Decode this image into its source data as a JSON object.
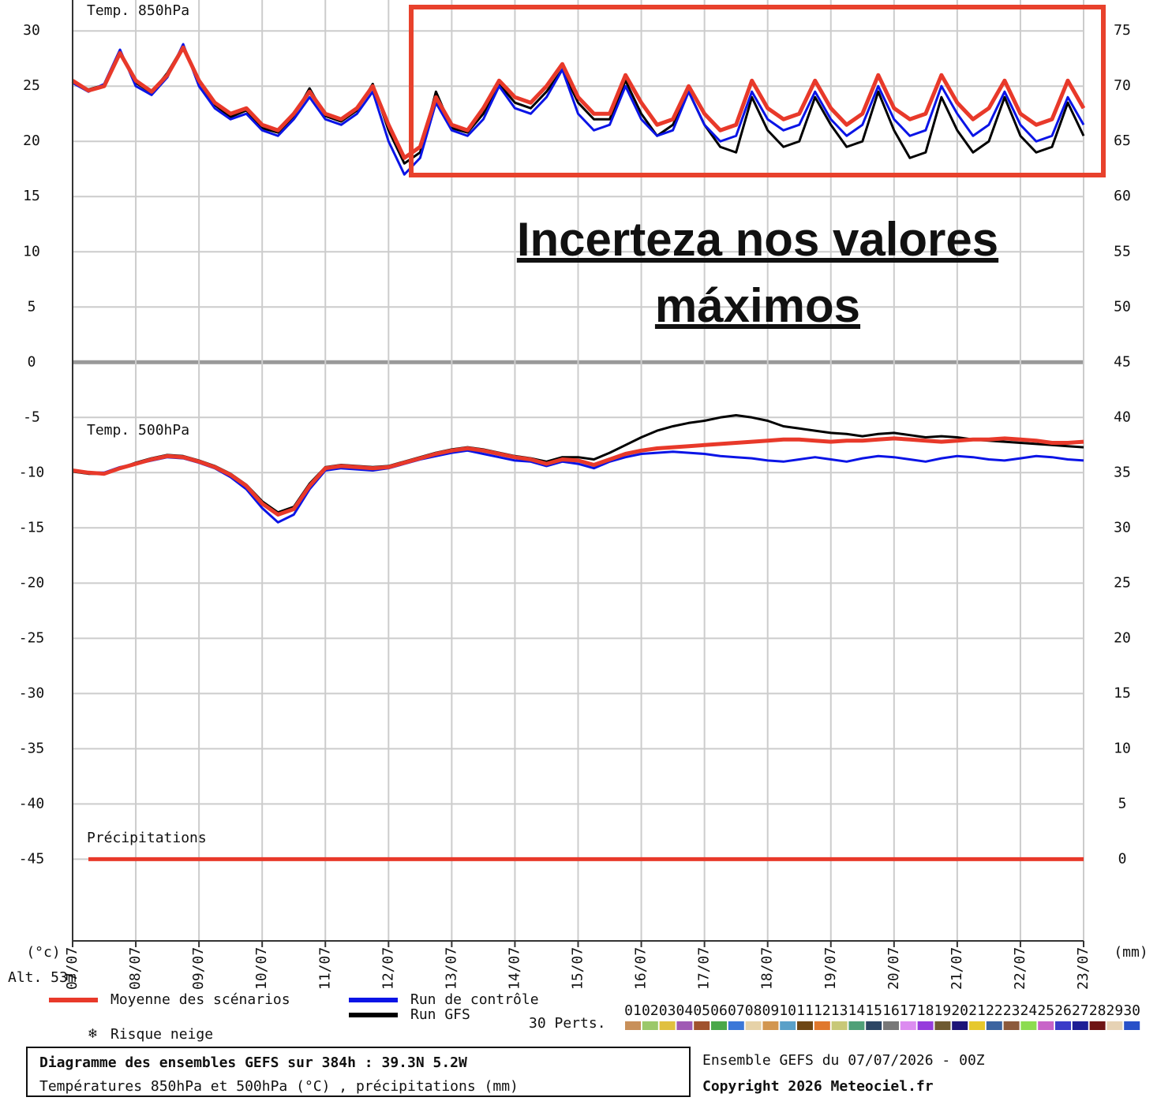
{
  "chart_data": {
    "type": "line",
    "title": "Diagramme des ensembles GEFS sur 384h : 39.3N 5.2W",
    "subtitle": "Températures 850hPa et 500hPa (°C) , précipitations (mm)",
    "run_info": "Ensemble GEFS du 07/07/2026 - 00Z",
    "copyright": "Copyright 2026 Meteociel.fr",
    "annotation": "Incerteza nos valores máximos",
    "labels": {
      "temp850": "Temp. 850hPa",
      "temp500": "Temp. 500hPa",
      "precip": "Précipitations"
    },
    "y_unit": "(°c)",
    "y2_unit": "(mm)",
    "altitude": "Alt. 53m",
    "snow_legend": "Risque neige",
    "perturbations_label": "30 Perts.",
    "grid": true,
    "xlim": [
      0,
      384
    ],
    "xticks": [
      {
        "value": 0,
        "label": "07/07"
      },
      {
        "value": 24,
        "label": "08/07"
      },
      {
        "value": 48,
        "label": "09/07"
      },
      {
        "value": 72,
        "label": "10/07"
      },
      {
        "value": 96,
        "label": "11/07"
      },
      {
        "value": 120,
        "label": "12/07"
      },
      {
        "value": 144,
        "label": "13/07"
      },
      {
        "value": 168,
        "label": "14/07"
      },
      {
        "value": 192,
        "label": "15/07"
      },
      {
        "value": 216,
        "label": "16/07"
      },
      {
        "value": 240,
        "label": "17/07"
      },
      {
        "value": 264,
        "label": "18/07"
      },
      {
        "value": 288,
        "label": "19/07"
      },
      {
        "value": 312,
        "label": "20/07"
      },
      {
        "value": 336,
        "label": "21/07"
      },
      {
        "value": 360,
        "label": "22/07"
      },
      {
        "value": 384,
        "label": "23/07"
      }
    ],
    "ylim": [
      -52.4,
      32.8
    ],
    "yticks": [
      -45,
      -40,
      -35,
      -30,
      -25,
      -20,
      -15,
      -10,
      -5,
      0,
      5,
      10,
      15,
      20,
      25,
      30
    ],
    "y2lim": [
      -7.4,
      77.8
    ],
    "y2ticks": [
      0,
      5,
      10,
      15,
      20,
      25,
      30,
      35,
      40,
      45,
      50,
      55,
      60,
      65,
      70,
      75
    ],
    "x": [
      0,
      6,
      12,
      18,
      24,
      30,
      36,
      42,
      48,
      54,
      60,
      66,
      72,
      78,
      84,
      90,
      96,
      102,
      108,
      114,
      120,
      126,
      132,
      138,
      144,
      150,
      156,
      162,
      168,
      174,
      180,
      186,
      192,
      198,
      204,
      210,
      216,
      222,
      228,
      234,
      240,
      246,
      252,
      258,
      264,
      270,
      276,
      282,
      288,
      294,
      300,
      306,
      312,
      318,
      324,
      330,
      336,
      342,
      348,
      354,
      360,
      366,
      372,
      378,
      384
    ],
    "series": [
      {
        "name": "Run GFS",
        "color": "#000000",
        "temp850": [
          25.4,
          24.7,
          25.1,
          28.1,
          25.3,
          24.4,
          26.2,
          28.6,
          25.4,
          23.3,
          22.2,
          22.8,
          21.2,
          20.8,
          22.3,
          24.8,
          22.3,
          21.8,
          22.8,
          25.2,
          21,
          18,
          19,
          24.5,
          21.2,
          20.8,
          22.5,
          25.2,
          23.5,
          23,
          24.5,
          26.5,
          23.5,
          22,
          22,
          25.5,
          22.5,
          20.5,
          21.5,
          24.5,
          21.5,
          19.5,
          19,
          24,
          21,
          19.5,
          20,
          24,
          21.5,
          19.5,
          20,
          24.5,
          21,
          18.5,
          19,
          24,
          21,
          19,
          20,
          24,
          20.5,
          19,
          19.5,
          23.5,
          20.5
        ],
        "temp500": [
          -9.9,
          -10.1,
          -10.1,
          -9.6,
          -9.1,
          -8.7,
          -8.4,
          -8.5,
          -8.9,
          -9.4,
          -10.1,
          -11.1,
          -12.6,
          -13.6,
          -13.1,
          -11,
          -9.5,
          -9.3,
          -9.4,
          -9.5,
          -9.4,
          -9,
          -8.6,
          -8.2,
          -7.9,
          -7.7,
          -7.9,
          -8.2,
          -8.5,
          -8.7,
          -9,
          -8.6,
          -8.6,
          -8.8,
          -8.2,
          -7.5,
          -6.8,
          -6.2,
          -5.8,
          -5.5,
          -5.3,
          -5,
          -4.8,
          -5,
          -5.3,
          -5.8,
          -6,
          -6.2,
          -6.4,
          -6.5,
          -6.7,
          -6.5,
          -6.4,
          -6.6,
          -6.8,
          -6.7,
          -6.8,
          -7,
          -7.1,
          -7.2,
          -7.3,
          -7.4,
          -7.5,
          -7.6,
          -7.7
        ]
      },
      {
        "name": "Run de contrôle",
        "color": "#0a14e6",
        "temp850": [
          25.3,
          24.5,
          25.2,
          28.3,
          25,
          24.2,
          25.8,
          28.8,
          25,
          23,
          22,
          22.5,
          21,
          20.5,
          22,
          24,
          22,
          21.5,
          22.5,
          24.5,
          20,
          17,
          18.5,
          23.5,
          21,
          20.5,
          22,
          25,
          23,
          22.5,
          24,
          26.5,
          22.5,
          21,
          21.5,
          25,
          22,
          20.5,
          21,
          24.5,
          21.5,
          20,
          20.5,
          24.5,
          22,
          21,
          21.5,
          24.5,
          22,
          20.5,
          21.5,
          25,
          22,
          20.5,
          21,
          25,
          22.5,
          20.5,
          21.5,
          24.5,
          21.5,
          20,
          20.5,
          24,
          21.5
        ],
        "temp500": [
          -9.8,
          -10,
          -10,
          -9.5,
          -9.2,
          -8.9,
          -8.6,
          -8.7,
          -9.1,
          -9.6,
          -10.4,
          -11.5,
          -13.2,
          -14.5,
          -13.8,
          -11.5,
          -9.8,
          -9.6,
          -9.7,
          -9.8,
          -9.6,
          -9.2,
          -8.8,
          -8.5,
          -8.2,
          -8,
          -8.3,
          -8.6,
          -8.9,
          -9,
          -9.4,
          -9,
          -9.2,
          -9.6,
          -9,
          -8.6,
          -8.3,
          -8.2,
          -8.1,
          -8.2,
          -8.3,
          -8.5,
          -8.6,
          -8.7,
          -8.9,
          -9,
          -8.8,
          -8.6,
          -8.8,
          -9,
          -8.7,
          -8.5,
          -8.6,
          -8.8,
          -9,
          -8.7,
          -8.5,
          -8.6,
          -8.8,
          -8.9,
          -8.7,
          -8.5,
          -8.6,
          -8.8,
          -8.9
        ]
      },
      {
        "name": "Moyenne des scénarios",
        "color": "#e8392a",
        "temp850": [
          25.5,
          24.6,
          25,
          28,
          25.5,
          24.5,
          26,
          28.5,
          25.5,
          23.5,
          22.5,
          23,
          21.5,
          21,
          22.5,
          24.5,
          22.5,
          22,
          23,
          25,
          21.5,
          18.5,
          19.5,
          24,
          21.5,
          21,
          23,
          25.5,
          24,
          23.5,
          25,
          27,
          24,
          22.5,
          22.5,
          26,
          23.5,
          21.5,
          22,
          25,
          22.5,
          21,
          21.5,
          25.5,
          23,
          22,
          22.5,
          25.5,
          23,
          21.5,
          22.5,
          26,
          23,
          22,
          22.5,
          26,
          23.5,
          22,
          23,
          25.5,
          22.5,
          21.5,
          22,
          25.5,
          23
        ],
        "temp500": [
          -9.8,
          -10,
          -10.1,
          -9.6,
          -9.2,
          -8.8,
          -8.5,
          -8.6,
          -9,
          -9.5,
          -10.2,
          -11.2,
          -12.8,
          -13.8,
          -13.3,
          -11.2,
          -9.6,
          -9.4,
          -9.5,
          -9.6,
          -9.5,
          -9.1,
          -8.7,
          -8.3,
          -8,
          -7.8,
          -8,
          -8.3,
          -8.6,
          -8.8,
          -9.2,
          -8.8,
          -8.9,
          -9.3,
          -8.8,
          -8.3,
          -8,
          -7.8,
          -7.7,
          -7.6,
          -7.5,
          -7.4,
          -7.3,
          -7.2,
          -7.1,
          -7,
          -7,
          -7.1,
          -7.2,
          -7.1,
          -7.1,
          -7,
          -6.9,
          -7,
          -7.1,
          -7.2,
          -7.1,
          -7,
          -7,
          -6.9,
          -7,
          -7.1,
          -7.3,
          -7.3,
          -7.2
        ],
        "precip": [
          null,
          0,
          0,
          0,
          0,
          0,
          0,
          0,
          0,
          0,
          0,
          0,
          0,
          0,
          0,
          0,
          0,
          0,
          0,
          0,
          0,
          0,
          0,
          0,
          0,
          0,
          0,
          0,
          0,
          0,
          0,
          0,
          0,
          0,
          0,
          0,
          0,
          0,
          0,
          0,
          0,
          0,
          0,
          0,
          0,
          0,
          0,
          0,
          0,
          0,
          0,
          0,
          0,
          0,
          0,
          0,
          0,
          0,
          0,
          0,
          0,
          0,
          0,
          0,
          0
        ]
      }
    ],
    "perturbations": [
      {
        "name": "01",
        "color": "#c8905a"
      },
      {
        "name": "02",
        "color": "#9bc86a"
      },
      {
        "name": "03",
        "color": "#e0c040"
      },
      {
        "name": "04",
        "color": "#a05ab4"
      },
      {
        "name": "05",
        "color": "#a0522d"
      },
      {
        "name": "06",
        "color": "#4aa84a"
      },
      {
        "name": "07",
        "color": "#3c78d8"
      },
      {
        "name": "08",
        "color": "#e6d2a8"
      },
      {
        "name": "09",
        "color": "#d29650"
      },
      {
        "name": "10",
        "color": "#5aa0c8"
      },
      {
        "name": "11",
        "color": "#6e4614"
      },
      {
        "name": "12",
        "color": "#e0782d"
      },
      {
        "name": "13",
        "color": "#c8c878"
      },
      {
        "name": "14",
        "color": "#50a078"
      },
      {
        "name": "15",
        "color": "#2d4664"
      },
      {
        "name": "16",
        "color": "#787878"
      },
      {
        "name": "17",
        "color": "#dc8cf0"
      },
      {
        "name": "18",
        "color": "#963cdc"
      },
      {
        "name": "19",
        "color": "#6e5a32"
      },
      {
        "name": "20",
        "color": "#1e1478"
      },
      {
        "name": "21",
        "color": "#e6c82d"
      },
      {
        "name": "22",
        "color": "#3c64a0"
      },
      {
        "name": "23",
        "color": "#8c5a3c"
      },
      {
        "name": "24",
        "color": "#8cdc50"
      },
      {
        "name": "25",
        "color": "#c864c8"
      },
      {
        "name": "26",
        "color": "#3c3cc8"
      },
      {
        "name": "27",
        "color": "#1e1e96"
      },
      {
        "name": "28",
        "color": "#6e1414"
      },
      {
        "name": "29",
        "color": "#e6d2b4"
      },
      {
        "name": "30",
        "color": "#2850c8"
      }
    ]
  }
}
